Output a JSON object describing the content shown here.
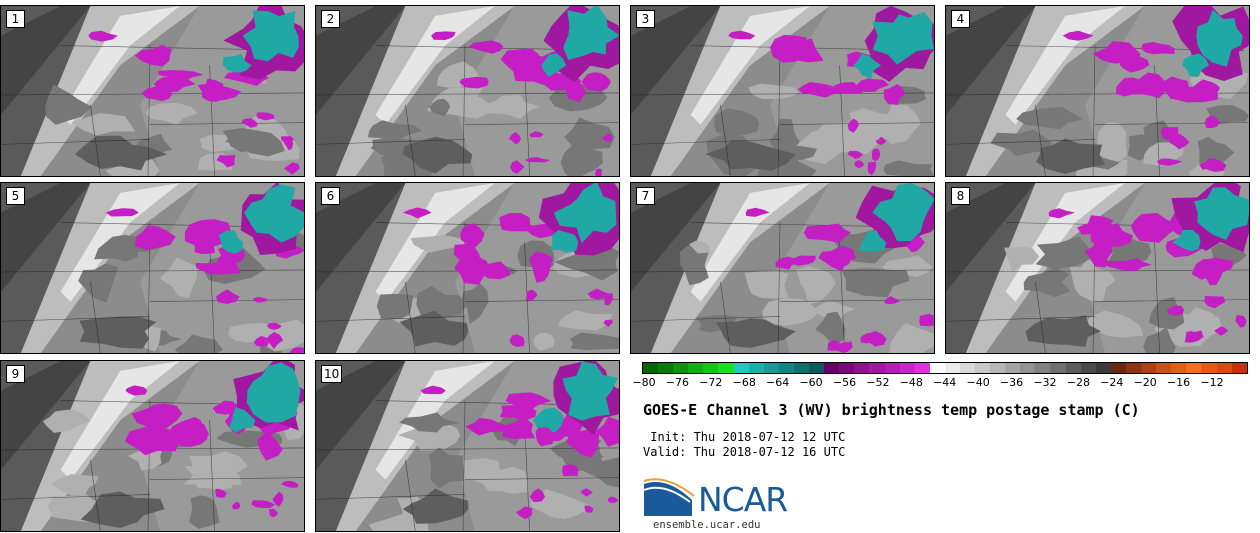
{
  "panels": [
    {
      "label": "1",
      "seed": 11
    },
    {
      "label": "2",
      "seed": 23
    },
    {
      "label": "3",
      "seed": 37
    },
    {
      "label": "4",
      "seed": 41
    },
    {
      "label": "5",
      "seed": 53
    },
    {
      "label": "6",
      "seed": 67
    },
    {
      "label": "7",
      "seed": 71
    },
    {
      "label": "8",
      "seed": 83
    },
    {
      "label": "9",
      "seed": 97
    },
    {
      "label": "10",
      "seed": 101
    }
  ],
  "colorbar": {
    "ticks": [
      "−80",
      "−76",
      "−72",
      "−68",
      "−64",
      "−60",
      "−56",
      "−52",
      "−48",
      "−44",
      "−40",
      "−36",
      "−32",
      "−28",
      "−24",
      "−20",
      "−16",
      "−12"
    ],
    "range": [
      -80,
      -10
    ],
    "colors": [
      "#006600",
      "#0a7a0a",
      "#0f9410",
      "#12ad14",
      "#14c616",
      "#18e01a",
      "#20c8c0",
      "#1cb0ac",
      "#189898",
      "#138484",
      "#0f7070",
      "#0b5c5c",
      "#660066",
      "#7a0a7a",
      "#8e128e",
      "#a218a2",
      "#b61eb6",
      "#ca26ca",
      "#e030e0",
      "#ffffff",
      "#ececec",
      "#dadada",
      "#c8c8c8",
      "#b6b6b6",
      "#a4a4a4",
      "#929292",
      "#808080",
      "#6e6e6e",
      "#5c5c5c",
      "#4a4a4a",
      "#3a3a3a",
      "#6a2a10",
      "#8a3412",
      "#aa4214",
      "#c85216",
      "#e06018",
      "#f0701c",
      "#e85a14",
      "#d84a10",
      "#c8300c"
    ]
  },
  "title": "GOES-E Channel 3 (WV) brightness temp postage stamp (C)",
  "init_line": " Init: Thu 2018-07-12 12 UTC",
  "valid_line": "Valid: Thu 2018-07-12 16 UTC",
  "logo": {
    "text": "NCAR",
    "url": "ensemble.ucar.edu",
    "color": "#1a5a9a"
  }
}
